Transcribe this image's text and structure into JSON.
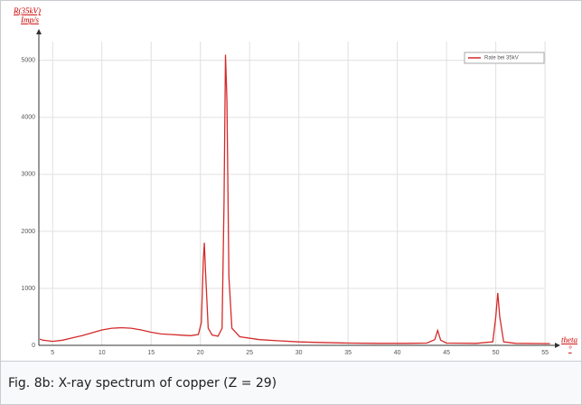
{
  "chart_data": {
    "type": "line",
    "y_label": "R(35kV)",
    "y_unit": "Imp/s",
    "x_label": "theta",
    "x_unit": "°",
    "x": [
      3.7,
      4,
      5,
      6,
      7,
      8,
      9,
      10,
      11,
      12,
      13,
      14,
      15,
      16,
      17,
      18,
      19,
      19.8,
      20.1,
      20.3,
      20.4,
      20.55,
      20.8,
      21.2,
      21.8,
      22.2,
      22.4,
      22.55,
      22.7,
      22.9,
      23.2,
      24,
      26,
      28,
      30,
      32,
      35,
      38,
      41,
      43,
      43.8,
      44.1,
      44.4,
      45,
      48,
      49.7,
      50.0,
      50.2,
      50.4,
      50.8,
      52,
      55.5
    ],
    "series": [
      {
        "name": "Rate bei 35kV",
        "color": "#d42a2a",
        "values": [
          110,
          90,
          70,
          90,
          130,
          170,
          220,
          270,
          300,
          310,
          300,
          270,
          230,
          200,
          190,
          180,
          170,
          190,
          400,
          1500,
          1800,
          1200,
          300,
          180,
          160,
          300,
          2500,
          5100,
          4300,
          1200,
          300,
          150,
          100,
          80,
          60,
          50,
          40,
          35,
          35,
          40,
          100,
          260,
          90,
          40,
          35,
          60,
          500,
          920,
          500,
          60,
          35,
          30
        ]
      }
    ],
    "xlim": [
      3.6,
      56
    ],
    "xticks": [
      5,
      10,
      15,
      20,
      25,
      30,
      35,
      40,
      45,
      50,
      55
    ],
    "ylim": [
      0,
      5330
    ],
    "yticks": [
      0,
      1000,
      2000,
      3000,
      4000,
      5000
    ],
    "grid": true,
    "legend": "upper right",
    "caption": "Fig. 8b: X-ray spectrum of copper (Z = 29)"
  }
}
